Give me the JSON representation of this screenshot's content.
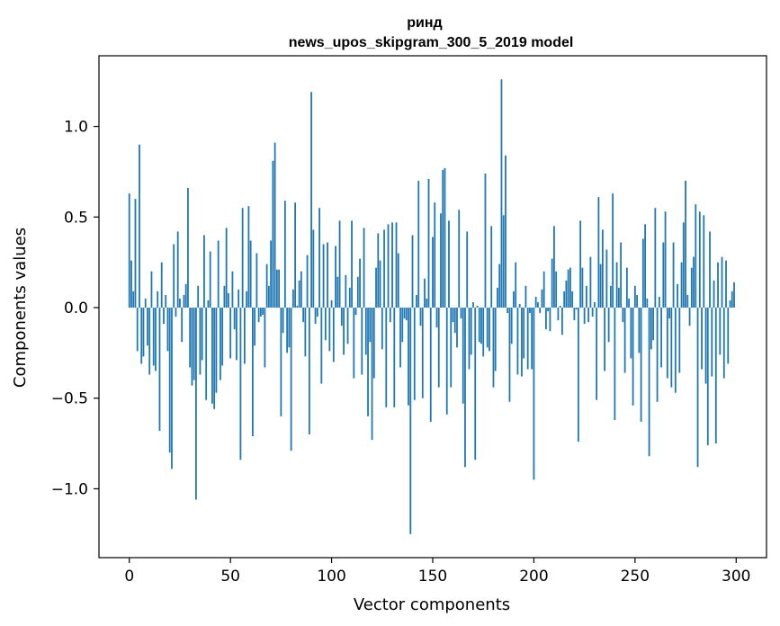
{
  "chart_data": {
    "type": "bar",
    "title": "ринд",
    "subtitle": "news_upos_skipgram_300_5_2019 model",
    "xlabel": "Vector components",
    "ylabel": "Components values",
    "xlim": [
      -15,
      315
    ],
    "ylim": [
      -1.38,
      1.39
    ],
    "xticks": [
      0,
      50,
      100,
      150,
      200,
      250,
      300
    ],
    "xtick_labels": [
      "0",
      "50",
      "100",
      "150",
      "200",
      "250",
      "300"
    ],
    "yticks": [
      -1.0,
      -0.5,
      0.0,
      0.5,
      1.0
    ],
    "ytick_labels": [
      "−1.0",
      "−0.5",
      "0.0",
      "0.5",
      "1.0"
    ],
    "bar_color": "#1f77b4",
    "grid": false,
    "values": [
      0.63,
      0.26,
      0.09,
      0.6,
      -0.24,
      0.9,
      -0.31,
      -0.27,
      0.05,
      -0.21,
      -0.37,
      0.2,
      -0.32,
      -0.35,
      0.09,
      -0.68,
      0.25,
      -0.09,
      0.07,
      -0.24,
      -0.8,
      -0.89,
      0.35,
      -0.05,
      0.42,
      0.05,
      -0.19,
      0.07,
      0.13,
      0.66,
      -0.33,
      -0.43,
      -0.4,
      -1.06,
      0.12,
      -0.37,
      -0.29,
      0.4,
      -0.51,
      0.04,
      0.31,
      -0.53,
      -0.56,
      -0.47,
      0.37,
      -0.4,
      -0.32,
      0.12,
      0.44,
      0.08,
      -0.28,
      0.2,
      -0.12,
      -0.29,
      0.1,
      -0.84,
      0.55,
      -0.31,
      0.09,
      0.56,
      0.37,
      -0.71,
      -0.21,
      0.3,
      -0.08,
      -0.05,
      -0.04,
      -0.33,
      0.24,
      0.12,
      0.37,
      0.81,
      0.91,
      0.21,
      0.21,
      -0.6,
      -0.14,
      0.59,
      -0.25,
      -0.22,
      -0.79,
      0.1,
      0.58,
      0.01,
      0.15,
      0.2,
      -0.08,
      -0.27,
      0.29,
      -0.7,
      1.19,
      0.43,
      -0.09,
      -0.05,
      0.55,
      -0.42,
      0.35,
      -0.18,
      0.36,
      -0.24,
      0.04,
      -0.3,
      0.34,
      0.17,
      0.48,
      -0.1,
      -0.26,
      0.18,
      -0.2,
      0.11,
      0.48,
      -0.39,
      -0.04,
      0.17,
      0.27,
      -0.37,
      0.44,
      -0.26,
      -0.6,
      -0.19,
      -0.73,
      -0.39,
      0.22,
      0.41,
      0.26,
      -0.23,
      0.43,
      -0.55,
      0.46,
      -0.08,
      0.47,
      -0.55,
      0.47,
      0.3,
      -0.33,
      -0.19,
      -0.06,
      -0.07,
      -0.54,
      -1.25,
      0.4,
      -0.51,
      0.07,
      0.7,
      -0.1,
      -0.5,
      0.16,
      0.05,
      0.71,
      -0.63,
      0.39,
      0.58,
      -0.11,
      -0.44,
      0.52,
      0.76,
      0.77,
      -0.59,
      0.48,
      -0.44,
      -0.08,
      -0.14,
      -0.22,
      0.54,
      -0.06,
      -0.53,
      -0.88,
      0.42,
      -0.34,
      -0.26,
      0.03,
      -0.84,
      0.01,
      -0.19,
      -0.2,
      -0.27,
      0.74,
      -0.22,
      -0.24,
      0.45,
      -0.44,
      -0.35,
      0.11,
      0.24,
      1.26,
      0.51,
      0.84,
      -0.03,
      -0.52,
      -0.2,
      0.09,
      0.25,
      -0.37,
      0.02,
      -0.38,
      -0.28,
      0.12,
      -0.34,
      -0.03,
      -0.34,
      -0.95,
      0.06,
      0.03,
      -0.03,
      0.1,
      0.2,
      -0.12,
      -0.02,
      -0.13,
      0.27,
      0.45,
      0.2,
      -0.07,
      0.01,
      -0.15,
      0.09,
      0.15,
      0.21,
      0.22,
      0.09,
      -0.07,
      -0.01,
      -0.74,
      0.48,
      0.22,
      -0.09,
      0.12,
      -0.08,
      0.28,
      -0.05,
      0.03,
      -0.51,
      0.61,
      0.24,
      0.43,
      -0.35,
      0.32,
      -0.19,
      0.12,
      0.63,
      -0.62,
      0.25,
      0.11,
      0.36,
      -0.08,
      -0.36,
      0.22,
      0.05,
      -0.28,
      -0.54,
      0.12,
      0.07,
      -0.25,
      -0.63,
      0.38,
      0.46,
      0.05,
      -0.82,
      -0.23,
      -0.18,
      0.55,
      -0.52,
      0.06,
      -0.33,
      0.36,
      0.53,
      -0.39,
      -0.06,
      -0.44,
      0.36,
      -0.47,
      0.13,
      -0.36,
      0.25,
      0.47,
      0.7,
      0.07,
      -0.1,
      0.22,
      0.28,
      0.57,
      -0.88,
      0.53,
      -0.34,
      0.51,
      -0.42,
      -0.76,
      0.42,
      -0.38,
      0.15,
      -0.75,
      0.25,
      -0.26,
      0.28,
      -0.39,
      0.26,
      -0.31,
      0.04,
      0.09,
      0.14
    ]
  }
}
